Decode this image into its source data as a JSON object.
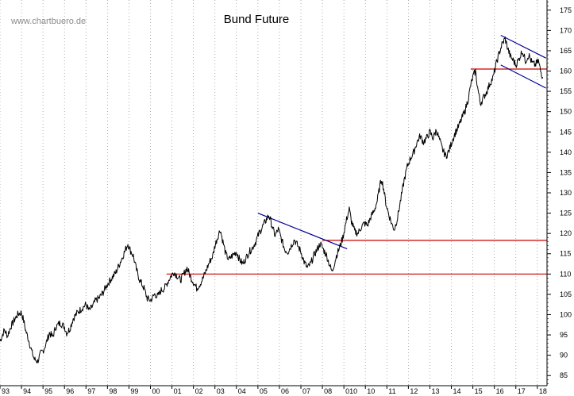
{
  "watermark": "www.chartbuero.de",
  "chart_data": {
    "type": "line",
    "title": "Bund Future",
    "xlabel": "",
    "ylabel": "",
    "x_range": [
      1993.0,
      2018.45
    ],
    "ylim": [
      82.5,
      177.5
    ],
    "y_ticks": [
      85,
      90,
      95,
      100,
      105,
      110,
      115,
      120,
      125,
      130,
      135,
      140,
      145,
      150,
      155,
      160,
      165,
      170,
      175
    ],
    "x_tick_labels": [
      {
        "label": "93",
        "x": 1993
      },
      {
        "label": "94",
        "x": 1994
      },
      {
        "label": "95",
        "x": 1995
      },
      {
        "label": "96",
        "x": 1996
      },
      {
        "label": "97",
        "x": 1997
      },
      {
        "label": "98",
        "x": 1998
      },
      {
        "label": "99",
        "x": 1999
      },
      {
        "label": "00",
        "x": 2000
      },
      {
        "label": "01",
        "x": 2001
      },
      {
        "label": "02",
        "x": 2002
      },
      {
        "label": "03",
        "x": 2003
      },
      {
        "label": "04",
        "x": 2004
      },
      {
        "label": "05",
        "x": 2005
      },
      {
        "label": "06",
        "x": 2006
      },
      {
        "label": "07",
        "x": 2007
      },
      {
        "label": "08",
        "x": 2008
      },
      {
        "label": "010",
        "x": 2009
      },
      {
        "label": "10",
        "x": 2010
      },
      {
        "label": "11",
        "x": 2011
      },
      {
        "label": "12",
        "x": 2012
      },
      {
        "label": "13",
        "x": 2013
      },
      {
        "label": "14",
        "x": 2014
      },
      {
        "label": "15",
        "x": 2015
      },
      {
        "label": "16",
        "x": 2016
      },
      {
        "label": "17",
        "x": 2017
      },
      {
        "label": "18",
        "x": 2018
      }
    ],
    "grid": {
      "vertical": "dotted",
      "horizontal": "none"
    },
    "series": [
      {
        "color": "#000000",
        "points": [
          [
            1993.0,
            93.5
          ],
          [
            1993.2,
            96.2
          ],
          [
            1993.35,
            94.8
          ],
          [
            1993.5,
            97.0
          ],
          [
            1993.7,
            99.0
          ],
          [
            1993.85,
            100.2
          ],
          [
            1994.0,
            100.5
          ],
          [
            1994.1,
            98.5
          ],
          [
            1994.2,
            96.0
          ],
          [
            1994.35,
            93.5
          ],
          [
            1994.5,
            90.5
          ],
          [
            1994.6,
            89.0
          ],
          [
            1994.75,
            88.5
          ],
          [
            1994.9,
            90.5
          ],
          [
            1995.0,
            91.0
          ],
          [
            1995.15,
            93.0
          ],
          [
            1995.3,
            95.5
          ],
          [
            1995.45,
            94.5
          ],
          [
            1995.6,
            97.0
          ],
          [
            1995.8,
            98.0
          ],
          [
            1996.0,
            97.0
          ],
          [
            1996.1,
            95.5
          ],
          [
            1996.25,
            96.5
          ],
          [
            1996.4,
            99.0
          ],
          [
            1996.6,
            100.5
          ],
          [
            1996.8,
            101.5
          ],
          [
            1997.0,
            102.5
          ],
          [
            1997.15,
            101.0
          ],
          [
            1997.3,
            102.0
          ],
          [
            1997.45,
            103.5
          ],
          [
            1997.6,
            104.0
          ],
          [
            1997.8,
            105.5
          ],
          [
            1998.0,
            107.5
          ],
          [
            1998.2,
            109.0
          ],
          [
            1998.4,
            110.5
          ],
          [
            1998.6,
            113.0
          ],
          [
            1998.8,
            115.5
          ],
          [
            1998.95,
            117.5
          ],
          [
            1999.05,
            116.0
          ],
          [
            1999.2,
            114.5
          ],
          [
            1999.35,
            111.0
          ],
          [
            1999.5,
            108.5
          ],
          [
            1999.7,
            106.5
          ],
          [
            1999.85,
            104.0
          ],
          [
            2000.0,
            103.5
          ],
          [
            2000.2,
            105.0
          ],
          [
            2000.35,
            104.5
          ],
          [
            2000.5,
            106.0
          ],
          [
            2000.65,
            106.5
          ],
          [
            2000.8,
            108.0
          ],
          [
            2000.95,
            109.5
          ],
          [
            2001.1,
            110.5
          ],
          [
            2001.25,
            109.5
          ],
          [
            2001.4,
            108.5
          ],
          [
            2001.55,
            110.0
          ],
          [
            2001.7,
            111.5
          ],
          [
            2001.85,
            109.5
          ],
          [
            2002.0,
            108.0
          ],
          [
            2002.15,
            106.5
          ],
          [
            2002.3,
            107.5
          ],
          [
            2002.45,
            109.0
          ],
          [
            2002.6,
            111.0
          ],
          [
            2002.75,
            113.0
          ],
          [
            2002.9,
            114.5
          ],
          [
            2003.0,
            117.0
          ],
          [
            2003.15,
            119.5
          ],
          [
            2003.25,
            121.0
          ],
          [
            2003.35,
            118.5
          ],
          [
            2003.5,
            115.0
          ],
          [
            2003.65,
            113.5
          ],
          [
            2003.8,
            114.5
          ],
          [
            2004.0,
            115.5
          ],
          [
            2004.15,
            113.5
          ],
          [
            2004.3,
            112.5
          ],
          [
            2004.45,
            114.0
          ],
          [
            2004.6,
            115.5
          ],
          [
            2004.75,
            116.5
          ],
          [
            2004.9,
            118.0
          ],
          [
            2005.05,
            120.0
          ],
          [
            2005.2,
            121.5
          ],
          [
            2005.35,
            123.0
          ],
          [
            2005.5,
            124.5
          ],
          [
            2005.6,
            123.0
          ],
          [
            2005.7,
            121.0
          ],
          [
            2005.8,
            119.5
          ],
          [
            2005.95,
            121.0
          ],
          [
            2006.1,
            118.5
          ],
          [
            2006.25,
            116.0
          ],
          [
            2006.4,
            115.5
          ],
          [
            2006.55,
            117.0
          ],
          [
            2006.7,
            118.5
          ],
          [
            2006.85,
            117.0
          ],
          [
            2007.0,
            115.5
          ],
          [
            2007.15,
            113.0
          ],
          [
            2007.3,
            111.5
          ],
          [
            2007.45,
            112.5
          ],
          [
            2007.6,
            114.5
          ],
          [
            2007.75,
            116.0
          ],
          [
            2007.9,
            117.5
          ],
          [
            2008.05,
            116.0
          ],
          [
            2008.2,
            114.5
          ],
          [
            2008.35,
            112.0
          ],
          [
            2008.45,
            110.5
          ],
          [
            2008.55,
            112.5
          ],
          [
            2008.65,
            114.5
          ],
          [
            2008.8,
            116.5
          ],
          [
            2008.95,
            119.0
          ],
          [
            2009.05,
            121.5
          ],
          [
            2009.15,
            124.0
          ],
          [
            2009.25,
            126.0
          ],
          [
            2009.35,
            123.0
          ],
          [
            2009.5,
            120.5
          ],
          [
            2009.65,
            120.0
          ],
          [
            2009.8,
            121.5
          ],
          [
            2009.95,
            122.5
          ],
          [
            2010.1,
            122.0
          ],
          [
            2010.25,
            124.0
          ],
          [
            2010.4,
            125.5
          ],
          [
            2010.55,
            128.0
          ],
          [
            2010.65,
            131.0
          ],
          [
            2010.75,
            133.5
          ],
          [
            2010.85,
            131.0
          ],
          [
            2010.95,
            127.5
          ],
          [
            2011.1,
            124.5
          ],
          [
            2011.25,
            122.0
          ],
          [
            2011.35,
            121.0
          ],
          [
            2011.5,
            124.0
          ],
          [
            2011.65,
            128.5
          ],
          [
            2011.8,
            133.0
          ],
          [
            2011.95,
            136.5
          ],
          [
            2012.1,
            138.5
          ],
          [
            2012.25,
            140.0
          ],
          [
            2012.4,
            142.5
          ],
          [
            2012.55,
            144.0
          ],
          [
            2012.7,
            142.5
          ],
          [
            2012.85,
            143.5
          ],
          [
            2013.0,
            145.0
          ],
          [
            2013.15,
            143.5
          ],
          [
            2013.3,
            145.5
          ],
          [
            2013.45,
            143.0
          ],
          [
            2013.6,
            140.5
          ],
          [
            2013.75,
            139.0
          ],
          [
            2013.9,
            140.5
          ],
          [
            2014.05,
            143.0
          ],
          [
            2014.2,
            145.0
          ],
          [
            2014.35,
            146.5
          ],
          [
            2014.5,
            148.5
          ],
          [
            2014.65,
            150.5
          ],
          [
            2014.8,
            153.5
          ],
          [
            2014.9,
            156.5
          ],
          [
            2015.0,
            158.5
          ],
          [
            2015.12,
            160.0
          ],
          [
            2015.22,
            156.0
          ],
          [
            2015.35,
            152.0
          ],
          [
            2015.5,
            153.5
          ],
          [
            2015.65,
            155.0
          ],
          [
            2015.8,
            157.0
          ],
          [
            2015.95,
            158.5
          ],
          [
            2016.05,
            161.0
          ],
          [
            2016.2,
            164.0
          ],
          [
            2016.35,
            166.5
          ],
          [
            2016.5,
            168.0
          ],
          [
            2016.6,
            166.0
          ],
          [
            2016.75,
            163.5
          ],
          [
            2016.9,
            162.5
          ],
          [
            2017.0,
            161.5
          ],
          [
            2017.15,
            163.0
          ],
          [
            2017.3,
            165.0
          ],
          [
            2017.45,
            162.5
          ],
          [
            2017.6,
            164.0
          ],
          [
            2017.75,
            162.0
          ],
          [
            2017.9,
            161.5
          ],
          [
            2018.05,
            162.5
          ],
          [
            2018.15,
            160.0
          ],
          [
            2018.25,
            158.5
          ]
        ]
      }
    ],
    "annotations": [
      {
        "kind": "horizontal",
        "color": "#cc0000",
        "y": 110,
        "x_start": 2000.75,
        "x_end": 2018.45
      },
      {
        "kind": "horizontal",
        "color": "#cc0000",
        "y": 118.3,
        "x_start": 2008.0,
        "x_end": 2018.45
      },
      {
        "kind": "horizontal",
        "color": "#cc0000",
        "y": 160.5,
        "x_start": 2014.9,
        "x_end": 2018.45
      },
      {
        "kind": "trendline",
        "color": "#000099",
        "x1": 2005.0,
        "y1": 125.0,
        "x2": 2009.15,
        "y2": 116.2
      },
      {
        "kind": "trendline",
        "color": "#000099",
        "x1": 2016.3,
        "y1": 168.8,
        "x2": 2018.4,
        "y2": 163.2
      },
      {
        "kind": "trendline",
        "color": "#000099",
        "x1": 2016.3,
        "y1": 161.5,
        "x2": 2018.4,
        "y2": 155.8
      }
    ]
  }
}
